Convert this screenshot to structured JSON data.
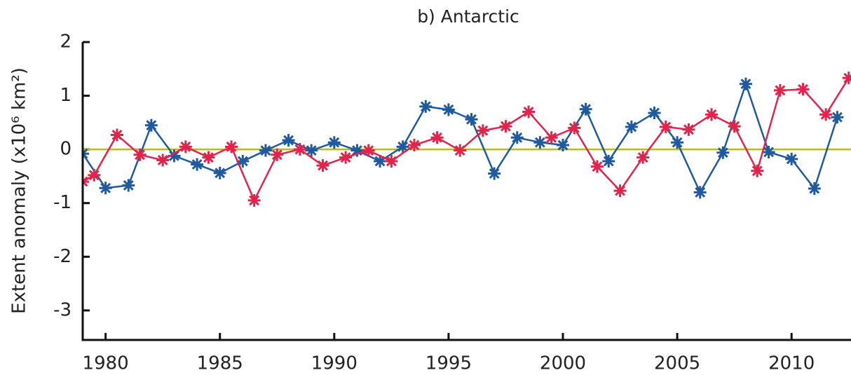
{
  "chart_data": {
    "type": "line",
    "title": "b) Antarctic",
    "y_label": "Extent anomaly (x10⁶ km²)",
    "xlim": [
      1979,
      2012.6
    ],
    "xticks": [
      1980,
      1985,
      1990,
      1995,
      2000,
      2005,
      2010
    ],
    "ylim": [
      -3.55,
      2
    ],
    "yticks": [
      -3,
      -2,
      -1,
      0,
      1,
      2
    ],
    "zero_line": true,
    "zero_line_color": "#b7b92a",
    "series": [
      {
        "name": "Blue",
        "color": "#1f5a9e",
        "x": [
          1979,
          1980,
          1981,
          1982,
          1983,
          1984,
          1985,
          1986,
          1987,
          1988,
          1989,
          1990,
          1991,
          1992,
          1993,
          1994,
          1995,
          1996,
          1997,
          1998,
          1999,
          2000,
          2001,
          2002,
          2003,
          2004,
          2005,
          2006,
          2007,
          2008,
          2009,
          2010,
          2011,
          2012
        ],
        "values": [
          -0.08,
          -0.72,
          -0.67,
          0.45,
          -0.12,
          -0.28,
          -0.44,
          -0.22,
          -0.02,
          0.17,
          -0.02,
          0.13,
          -0.02,
          -0.22,
          0.05,
          0.8,
          0.74,
          0.56,
          -0.45,
          0.22,
          0.13,
          0.08,
          0.75,
          -0.22,
          0.42,
          0.68,
          0.13,
          -0.8,
          -0.06,
          1.22,
          -0.05,
          -0.18,
          -0.73,
          0.6
        ]
      },
      {
        "name": "Red",
        "color": "#e0244c",
        "x": [
          1979,
          1979.5,
          1980.5,
          1981.5,
          1982.5,
          1983.5,
          1984.5,
          1985.5,
          1986.5,
          1987.5,
          1988.5,
          1989.5,
          1990.5,
          1991.5,
          1992.5,
          1993.5,
          1994.5,
          1995.5,
          1996.5,
          1997.5,
          1998.5,
          1999.5,
          2000.5,
          2001.5,
          2002.5,
          2003.5,
          2004.5,
          2005.5,
          2006.5,
          2007.5,
          2008.5,
          2009.5,
          2010.5,
          2011.5,
          2012.5
        ],
        "values": [
          -0.6,
          -0.48,
          0.27,
          -0.1,
          -0.2,
          0.05,
          -0.15,
          0.05,
          -0.95,
          -0.1,
          0.0,
          -0.3,
          -0.15,
          -0.02,
          -0.22,
          0.08,
          0.22,
          -0.02,
          0.35,
          0.43,
          0.7,
          0.22,
          0.4,
          -0.32,
          -0.77,
          -0.15,
          0.42,
          0.37,
          0.65,
          0.43,
          -0.4,
          1.1,
          1.12,
          0.65,
          1.33
        ]
      }
    ]
  }
}
